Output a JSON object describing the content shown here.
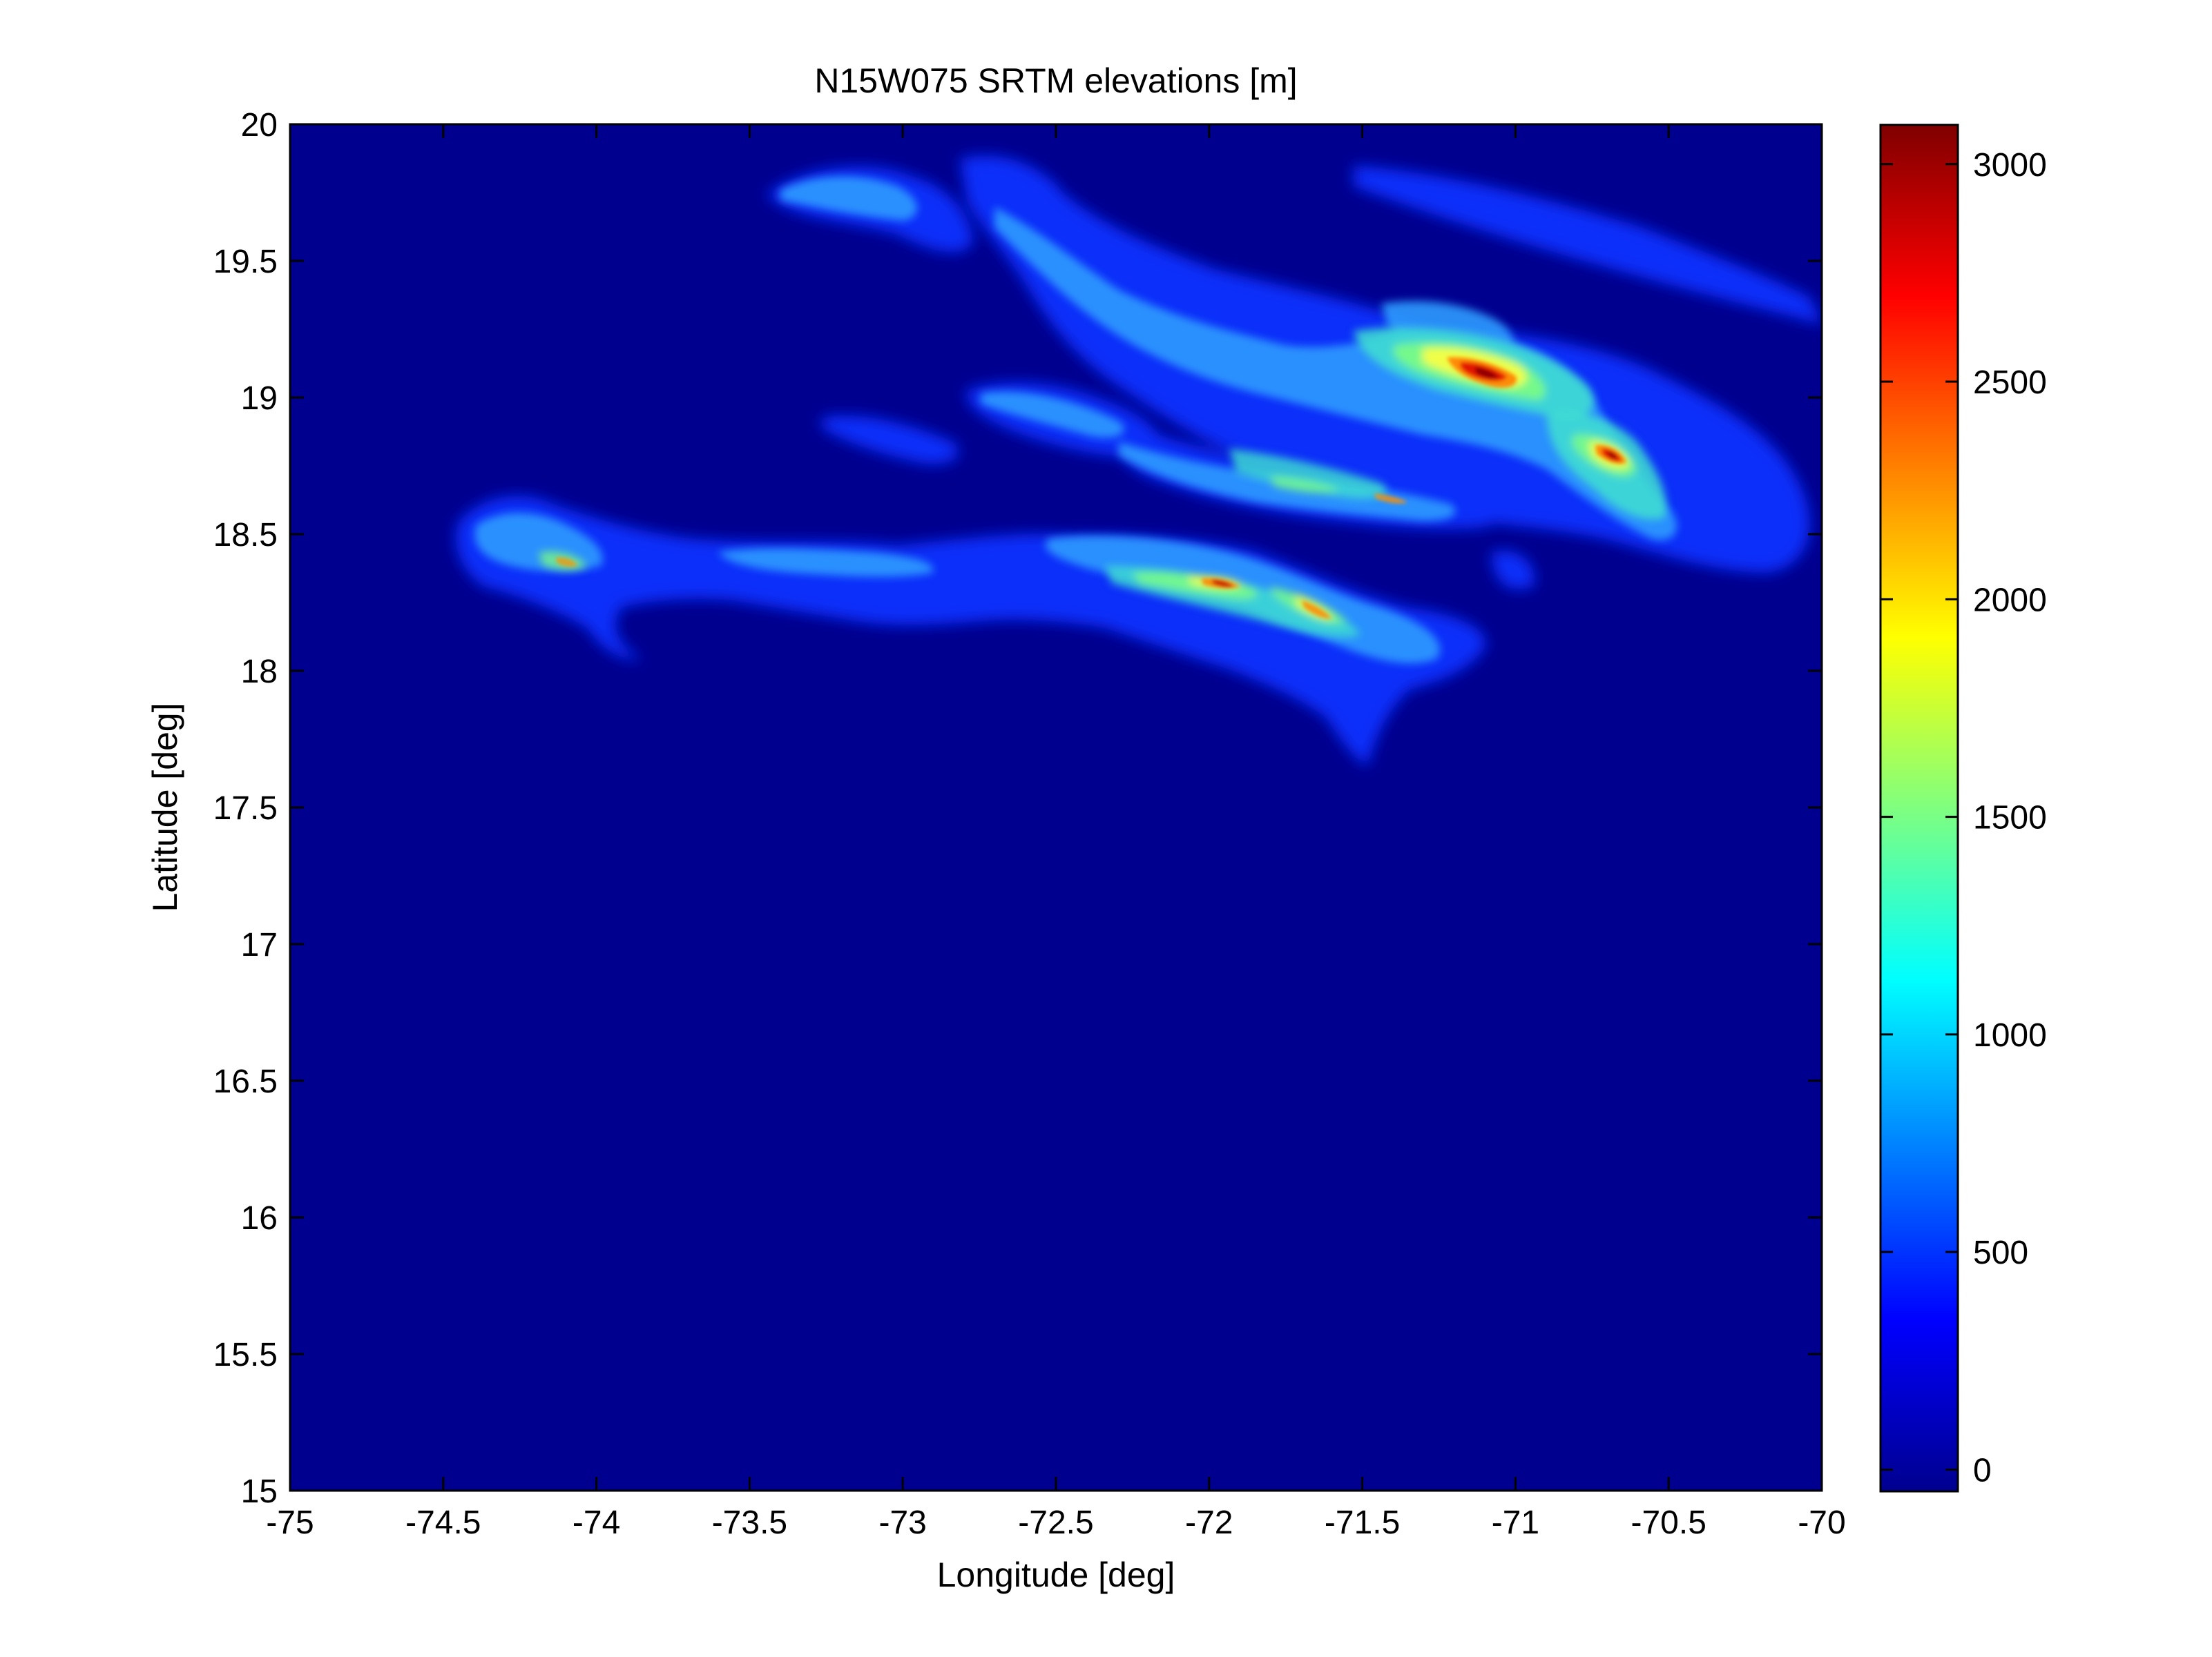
{
  "chart_data": {
    "type": "heatmap",
    "title": "N15W075 SRTM elevations [m]",
    "xlabel": "Longitude [deg]",
    "ylabel": "Latitude [deg]",
    "xlim": [
      -75,
      -70
    ],
    "ylim": [
      15,
      20
    ],
    "x_ticks": [
      -75,
      -74.5,
      -74,
      -73.5,
      -73,
      -72.5,
      -72,
      -71.5,
      -71,
      -70.5,
      -70
    ],
    "x_tick_labels": [
      "-75",
      "-74.5",
      "-74",
      "-73.5",
      "-73",
      "-72.5",
      "-72",
      "-71.5",
      "-71",
      "-70.5",
      "-70"
    ],
    "y_ticks": [
      15,
      15.5,
      16,
      16.5,
      17,
      17.5,
      18,
      18.5,
      19,
      19.5,
      20
    ],
    "y_tick_labels": [
      "15",
      "15.5",
      "16",
      "16.5",
      "17",
      "17.5",
      "18",
      "18.5",
      "19",
      "19.5",
      "20"
    ],
    "colormap": "jet",
    "colorbar": {
      "range": [
        -50,
        3090
      ],
      "ticks": [
        0,
        500,
        1000,
        1500,
        2000,
        2500,
        3000
      ],
      "tick_labels": [
        "0",
        "500",
        "1000",
        "1500",
        "2000",
        "2500",
        "3000"
      ]
    },
    "background_color": "#00008f",
    "grid": false
  }
}
